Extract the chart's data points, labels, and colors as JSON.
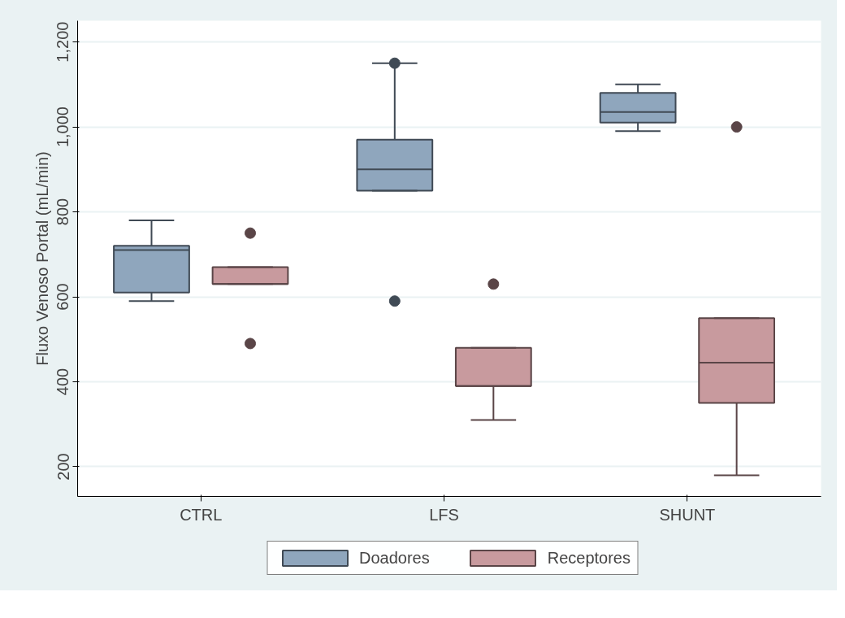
{
  "chart_data": {
    "type": "box",
    "ylabel": "Fluxo Venoso Portal (mL/min)",
    "categories": [
      "CTRL",
      "LFS",
      "SHUNT"
    ],
    "ylim": [
      130,
      1250
    ],
    "yticks": [
      {
        "value": 200,
        "label": "200"
      },
      {
        "value": 400,
        "label": "400"
      },
      {
        "value": 600,
        "label": "600"
      },
      {
        "value": 800,
        "label": "800"
      },
      {
        "value": 1000,
        "label": "1,000"
      },
      {
        "value": 1200,
        "label": "1,200"
      }
    ],
    "grid": "y",
    "legend": "bottom",
    "series": [
      {
        "name": "Doadores",
        "color": "#8fa6bd",
        "boxes": [
          {
            "low": 590,
            "q1": 610,
            "median": 710,
            "q3": 720,
            "high": 780
          },
          {
            "low": 850,
            "q1": 850,
            "median": 900,
            "q3": 970,
            "high": 1150,
            "outliers": [
              1150,
              590
            ]
          },
          {
            "low": 990,
            "q1": 1010,
            "median": 1035,
            "q3": 1080,
            "high": 1100
          }
        ]
      },
      {
        "name": "Receptores",
        "color": "#c89a9e",
        "boxes": [
          {
            "low": 630,
            "q1": 630,
            "median": 630,
            "q3": 670,
            "high": 670,
            "outliers": [
              750,
              490
            ]
          },
          {
            "low": 310,
            "q1": 390,
            "median": 390,
            "q3": 480,
            "high": 480,
            "outliers": [
              630
            ]
          },
          {
            "low": 180,
            "q1": 350,
            "median": 445,
            "q3": 550,
            "high": 550,
            "outliers": [
              1000
            ]
          }
        ]
      }
    ]
  }
}
